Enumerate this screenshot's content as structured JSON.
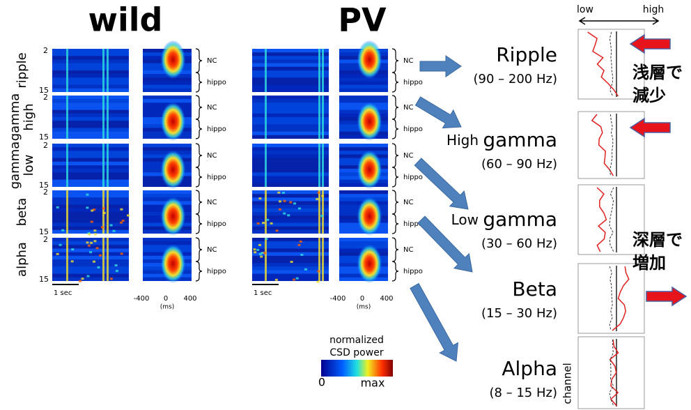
{
  "groups": [
    "wild",
    "PV"
  ],
  "rows": [
    {
      "lines": [
        "ripple"
      ]
    },
    {
      "lines": [
        "high",
        "gamma"
      ]
    },
    {
      "lines": [
        "low",
        "gamma"
      ]
    },
    {
      "lines": [
        "beta"
      ]
    },
    {
      "lines": [
        "alpha"
      ]
    }
  ],
  "channel_ticks": [
    "2",
    "15"
  ],
  "regions": [
    "NC",
    "hippo"
  ],
  "scale_bar": "1 sec",
  "time_ticks": [
    "-400",
    "0",
    "400"
  ],
  "time_unit": "(ms)",
  "colorbar": {
    "title_lines": [
      "normalized",
      "CSD power"
    ],
    "min": "0",
    "max": "max"
  },
  "bands": [
    {
      "name": "Ripple",
      "range": "(90 – 200 Hz)"
    },
    {
      "prefix": "High",
      "name": "gamma",
      "range": "(60  – 90 Hz)"
    },
    {
      "prefix": "Low",
      "name": "gamma",
      "range": "(30  – 60 Hz)"
    },
    {
      "name": "Beta",
      "range": "(15  – 30 Hz)"
    },
    {
      "name": "Alpha",
      "range": "(8  – 15 Hz)"
    }
  ],
  "profile_axis": {
    "low": "low",
    "high": "high",
    "ylabel": "channel"
  },
  "notes": [
    {
      "lines": [
        "浅層で",
        "減少"
      ]
    },
    {
      "lines": [
        "深層で",
        "増加"
      ]
    }
  ]
}
